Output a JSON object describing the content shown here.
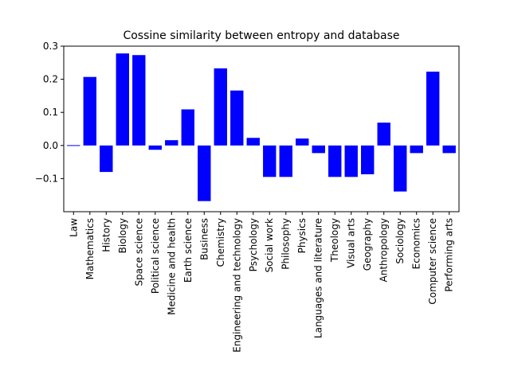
{
  "chart_data": {
    "type": "bar",
    "title": "Cossine similarity between entropy and database",
    "xlabel": "",
    "ylabel": "",
    "categories": [
      "Law",
      "Mathematics",
      "History",
      "Biology",
      "Space science",
      "Political science",
      "Medicine and health",
      "Earth science",
      "Business",
      "Chemistry",
      "Engineering and technology",
      "Psychology",
      "Social work",
      "Philosophy",
      "Physics",
      "Languages and literature",
      "Theology",
      "Visual arts",
      "Geography",
      "Anthropology",
      "Sociology",
      "Economics",
      "Computer science",
      "Performing arts"
    ],
    "values": [
      0.001,
      0.207,
      -0.08,
      0.278,
      0.273,
      -0.013,
      0.016,
      0.109,
      -0.168,
      0.233,
      0.166,
      0.023,
      -0.095,
      -0.095,
      0.021,
      -0.023,
      -0.095,
      -0.095,
      -0.087,
      0.069,
      -0.139,
      -0.023,
      0.223,
      -0.023
    ],
    "ylim": [
      -0.2,
      0.3
    ],
    "yticks": [
      0.3,
      0.2,
      0.1,
      0.0,
      -0.1
    ],
    "ytick_labels": [
      "0.3",
      "0.2",
      "0.1",
      "0.0",
      "−0.1"
    ],
    "bar_color": "#0000ff",
    "grid": false,
    "legend": "none"
  }
}
